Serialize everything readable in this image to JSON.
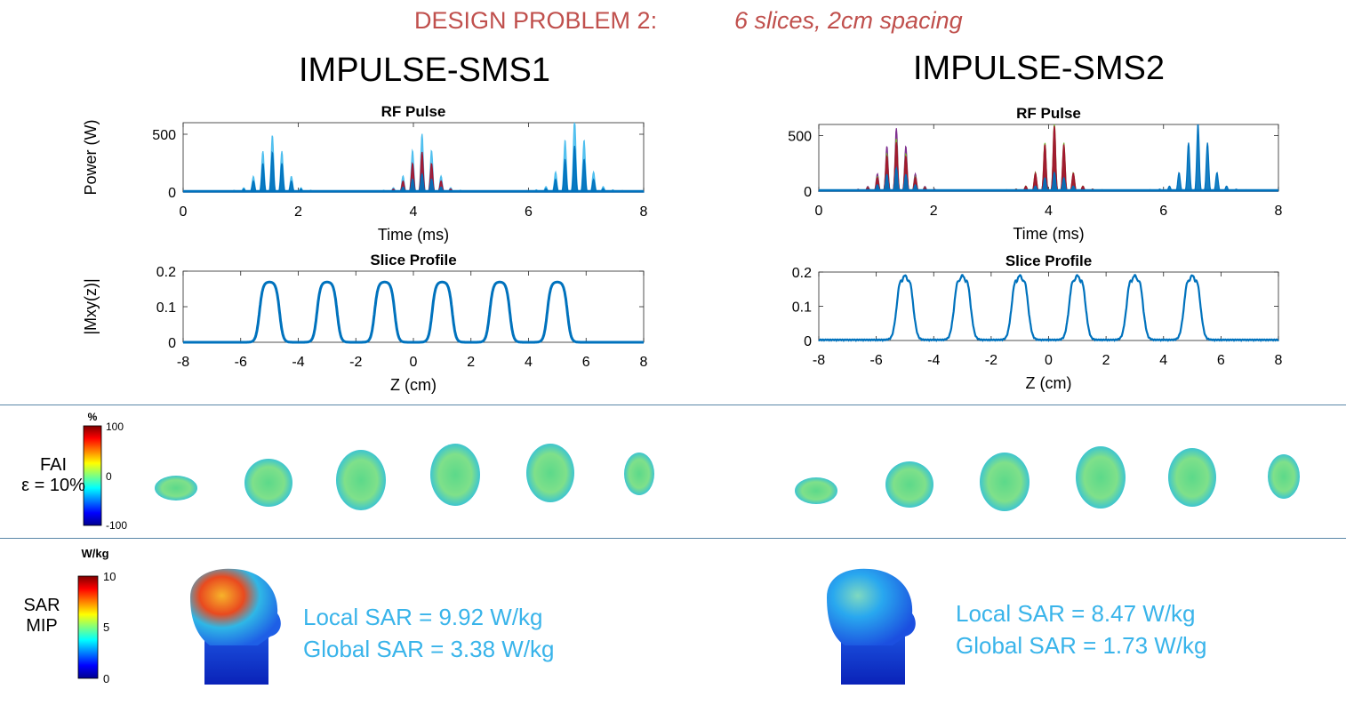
{
  "header": {
    "title": "DESIGN PROBLEM 2:",
    "subtitle": "6 slices, 2cm spacing"
  },
  "columns": [
    {
      "title": "IMPULSE-SMS1",
      "local_sar": "Local SAR = 9.92 W/kg",
      "global_sar": "Global SAR = 3.38 W/kg"
    },
    {
      "title": "IMPULSE-SMS2",
      "local_sar": "Local SAR = 8.47 W/kg",
      "global_sar": "Global SAR = 1.73 W/kg"
    }
  ],
  "rows": {
    "fai": {
      "label_line1": "FAI",
      "label_line2": "ε = 10%"
    },
    "sar": {
      "label_line1": "SAR",
      "label_line2": "MIP"
    }
  },
  "colorbars": [
    {
      "unit": "%",
      "ticks": [
        "100",
        "0",
        "-100"
      ]
    },
    {
      "unit": "W/kg",
      "ticks": [
        "10",
        "5",
        "0"
      ]
    }
  ],
  "colors": {
    "accent_red": "#c0504d",
    "sar_text": "#39b4ea",
    "line_blue": "#0072bd",
    "line_lightblue": "#4dbeee",
    "line_red": "#a2142f",
    "line_purple": "#7e2f8e",
    "line_green": "#77ac30",
    "divider": "#5a87a8"
  },
  "chart_data": [
    {
      "id": "rf1",
      "type": "line",
      "title": "RF Pulse",
      "xlabel": "Time (ms)",
      "ylabel": "Power (W)",
      "xlim": [
        0,
        8
      ],
      "ylim": [
        0,
        600
      ],
      "xticks": [
        0,
        2,
        4,
        6,
        8
      ],
      "yticks": [
        0,
        500
      ],
      "series": [
        {
          "name": "ch-lightblue",
          "color": "#4dbeee",
          "bursts": [
            {
              "center": 1.55,
              "peak": 470
            },
            {
              "center": 4.15,
              "peak": 480
            },
            {
              "center": 6.8,
              "peak": 600
            }
          ]
        },
        {
          "name": "ch-red",
          "color": "#a2142f",
          "bursts": [
            {
              "center": 4.15,
              "peak": 330
            }
          ]
        },
        {
          "name": "ch-blue",
          "color": "#0072bd",
          "bursts": [
            {
              "center": 1.55,
              "peak": 330
            },
            {
              "center": 4.15,
              "peak": 150
            },
            {
              "center": 6.8,
              "peak": 380
            }
          ]
        }
      ]
    },
    {
      "id": "rf2",
      "type": "line",
      "title": "RF Pulse",
      "xlabel": "Time (ms)",
      "ylabel": "",
      "xlim": [
        0,
        8
      ],
      "ylim": [
        0,
        600
      ],
      "xticks": [
        0,
        2,
        4,
        6,
        8
      ],
      "yticks": [
        0,
        500
      ],
      "series": [
        {
          "name": "ch-purple",
          "color": "#7e2f8e",
          "bursts": [
            {
              "center": 1.35,
              "peak": 540
            },
            {
              "center": 4.1,
              "peak": 400
            }
          ]
        },
        {
          "name": "ch-green",
          "color": "#77ac30",
          "bursts": [
            {
              "center": 1.35,
              "peak": 450
            },
            {
              "center": 4.1,
              "peak": 580
            }
          ]
        },
        {
          "name": "ch-red",
          "color": "#a2142f",
          "bursts": [
            {
              "center": 1.35,
              "peak": 420
            },
            {
              "center": 4.1,
              "peak": 560
            }
          ]
        },
        {
          "name": "ch-blue",
          "color": "#0072bd",
          "bursts": [
            {
              "center": 1.35,
              "peak": 200
            },
            {
              "center": 4.1,
              "peak": 160
            },
            {
              "center": 6.6,
              "peak": 580
            }
          ]
        }
      ]
    },
    {
      "id": "sp1",
      "type": "line",
      "title": "Slice Profile",
      "xlabel": "Z (cm)",
      "ylabel": "|Mxy(z)|",
      "xlim": [
        -8,
        8
      ],
      "ylim": [
        0,
        0.2
      ],
      "xticks": [
        -8,
        -6,
        -4,
        -2,
        0,
        2,
        4,
        6,
        8
      ],
      "yticks": [
        0,
        0.1,
        0.2
      ],
      "slice_centers": [
        -5,
        -3,
        -1,
        1,
        3,
        5
      ],
      "slice_height": 0.17,
      "slice_width": 0.7,
      "ripple": false
    },
    {
      "id": "sp2",
      "type": "line",
      "title": "Slice Profile",
      "xlabel": "Z (cm)",
      "ylabel": "",
      "xlim": [
        -8,
        8
      ],
      "ylim": [
        0,
        0.2
      ],
      "xticks": [
        -8,
        -6,
        -4,
        -2,
        0,
        2,
        4,
        6,
        8
      ],
      "yticks": [
        0,
        0.1,
        0.2
      ],
      "slice_centers": [
        -5,
        -3,
        -1,
        1,
        3,
        5
      ],
      "slice_height": 0.19,
      "slice_width": 0.6,
      "ripple": true
    }
  ]
}
